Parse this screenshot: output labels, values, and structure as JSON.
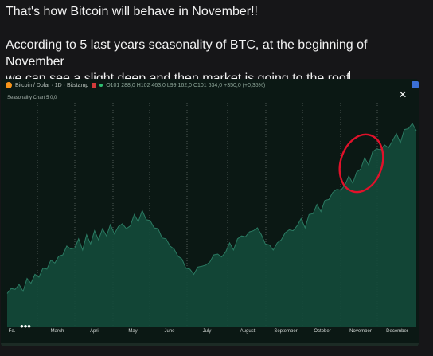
{
  "post": {
    "line1": "That's how Bitcoin will behave in November!!",
    "line2": "According to 5 last years seasonality of BTC, at the beginning of November",
    "line3": "we can see a slight deep and then market is going to the roof"
  },
  "chart_header": {
    "symbol": "Bitcoin / Dolar · 1D · Bitstamp",
    "ohlc": "O101 288,0  H102 463,0  L99 162,0  C101 634,0  +350,0 (+0,35%)",
    "indicator": "Seasonality Chart 5  0,0"
  },
  "icons": {
    "close": "×",
    "more": "•••",
    "close_name": "close-icon",
    "more_name": "more-icon"
  },
  "colors": {
    "accent_fill": "#134a3a",
    "line": "#1f6b55",
    "annotation": "#e0112a"
  },
  "chart_data": {
    "type": "area",
    "title": "",
    "xlabel": "",
    "ylabel": "",
    "months": [
      "Fe.",
      "March",
      "April",
      "May",
      "June",
      "July",
      "August",
      "September",
      "October",
      "November",
      "December"
    ],
    "series": [
      {
        "values": [
          16,
          20,
          18,
          22,
          17,
          25,
          21,
          27,
          24,
          30,
          28,
          34,
          31,
          36,
          35,
          41,
          38,
          40,
          43,
          39,
          45,
          42,
          47,
          44,
          48,
          46,
          50,
          47,
          49,
          52,
          48,
          51,
          55,
          53,
          57,
          54,
          52,
          50,
          48,
          45,
          43,
          41,
          38,
          36,
          33,
          30,
          28,
          27,
          29,
          31,
          30,
          33,
          35,
          37,
          34,
          38,
          41,
          39,
          43,
          46,
          44,
          48,
          47,
          50,
          45,
          42,
          40,
          39,
          41,
          44,
          46,
          49,
          47,
          51,
          53,
          50,
          55,
          57,
          60,
          58,
          62,
          64,
          66,
          69,
          67,
          71,
          74,
          72,
          76,
          79,
          83,
          81,
          86,
          89,
          87,
          91,
          88,
          93,
          95,
          92,
          97,
          99,
          100,
          98
        ]
      }
    ],
    "annotation": "circle around early November dip"
  }
}
